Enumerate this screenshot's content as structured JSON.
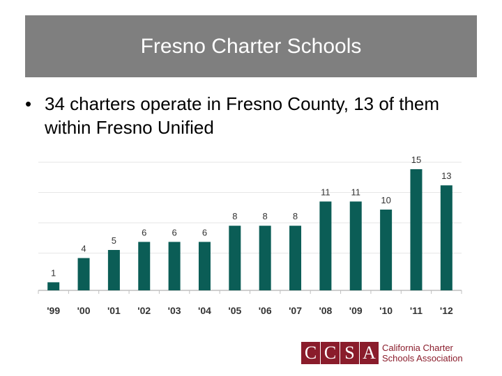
{
  "slide": {
    "title": "Fresno Charter Schools",
    "bullet_symbol": "•",
    "bullet_text": "34 charters operate in Fresno County, 13 of them within Fresno Unified"
  },
  "colors": {
    "title_bar": "#7f7f7f",
    "bar": "#0b5d56",
    "grid": "#e6e6e6",
    "axis": "#bfbfbf",
    "logo": "#8a1c2b"
  },
  "chart_data": {
    "type": "bar",
    "categories": [
      "'99",
      "'00",
      "'01",
      "'02",
      "'03",
      "'04",
      "'05",
      "'06",
      "'07",
      "'08",
      "'09",
      "'10",
      "'11",
      "'12"
    ],
    "values": [
      1,
      4,
      5,
      6,
      6,
      6,
      8,
      8,
      8,
      11,
      11,
      10,
      15,
      13
    ],
    "title": "",
    "xlabel": "",
    "ylabel": "",
    "ylim": [
      0,
      15
    ],
    "grid": true,
    "data_labels": true,
    "legend": "none"
  },
  "logo": {
    "letters": [
      "C",
      "C",
      "S",
      "A"
    ],
    "line1": "California Charter",
    "line2": "Schools Association"
  }
}
